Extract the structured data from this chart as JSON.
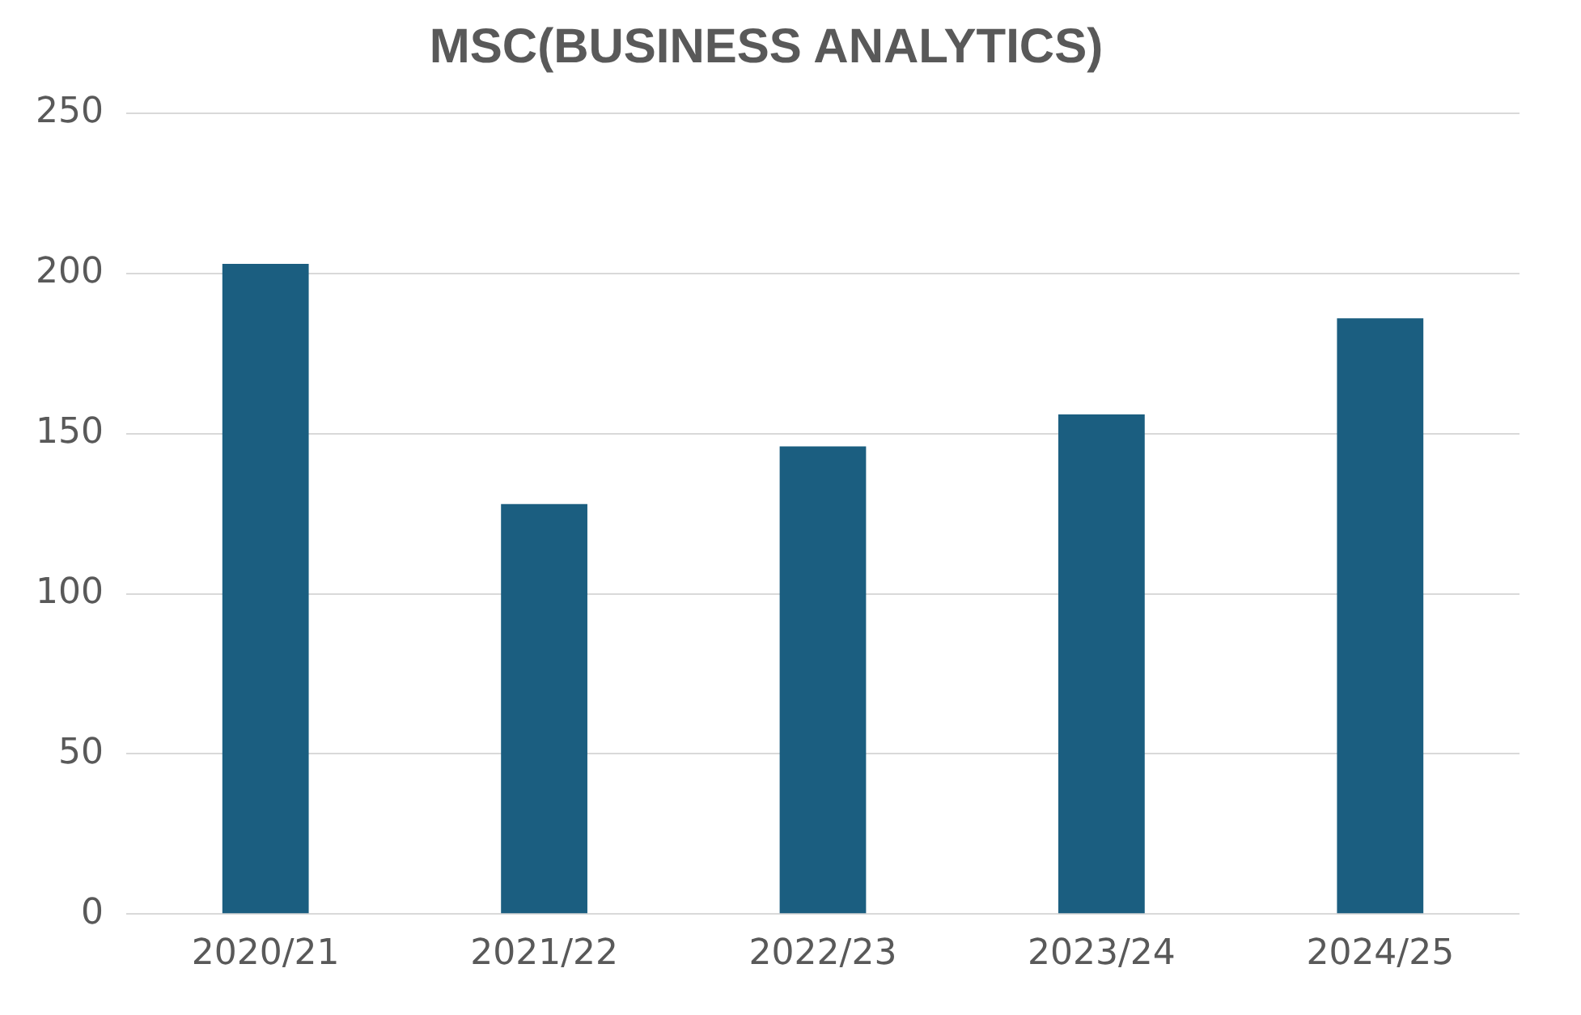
{
  "chart_data": {
    "type": "bar",
    "title": "MSC(BUSINESS ANALYTICS)",
    "categories": [
      "2020/21",
      "2021/22",
      "2022/23",
      "2023/24",
      "2024/25"
    ],
    "values": [
      203,
      128,
      146,
      156,
      186
    ],
    "color": "#1b5e80",
    "ylim": [
      0,
      250
    ],
    "yticks": [
      0,
      50,
      100,
      150,
      200,
      250
    ],
    "grid": "y",
    "legend": false
  }
}
